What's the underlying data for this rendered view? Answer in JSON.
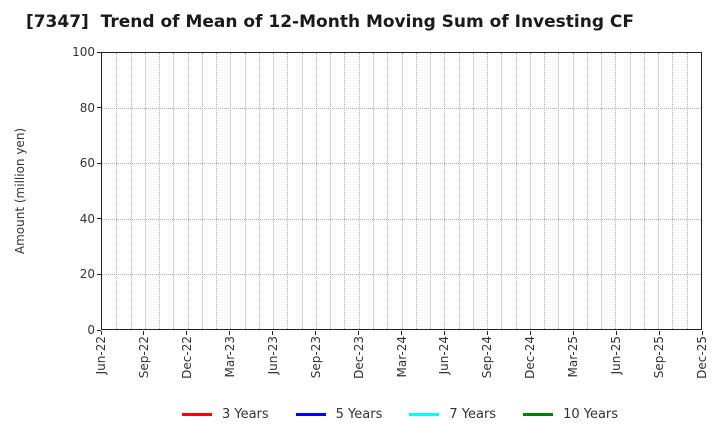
{
  "chart_data": {
    "type": "line",
    "title": "[7347]  Trend of Mean of 12-Month Moving Sum of Investing CF",
    "ylabel": "Amount (million yen)",
    "xlabel": "",
    "categories": [
      "Jun-22",
      "Sep-22",
      "Dec-22",
      "Mar-23",
      "Jun-23",
      "Sep-23",
      "Dec-23",
      "Mar-24",
      "Jun-24",
      "Sep-24",
      "Dec-24",
      "Mar-25",
      "Jun-25",
      "Sep-25",
      "Dec-25"
    ],
    "x_minor_gridline_count": 43,
    "ylim": [
      0,
      100
    ],
    "yticks": [
      0,
      20,
      40,
      60,
      80,
      100
    ],
    "grid": "dotted",
    "legend_position": "bottom",
    "series": [
      {
        "name": "3 Years",
        "color": "#ff0000",
        "values": []
      },
      {
        "name": "5 Years",
        "color": "#0000ff",
        "values": []
      },
      {
        "name": "7 Years",
        "color": "#00ffff",
        "values": []
      },
      {
        "name": "10 Years",
        "color": "#008000",
        "values": []
      }
    ]
  }
}
